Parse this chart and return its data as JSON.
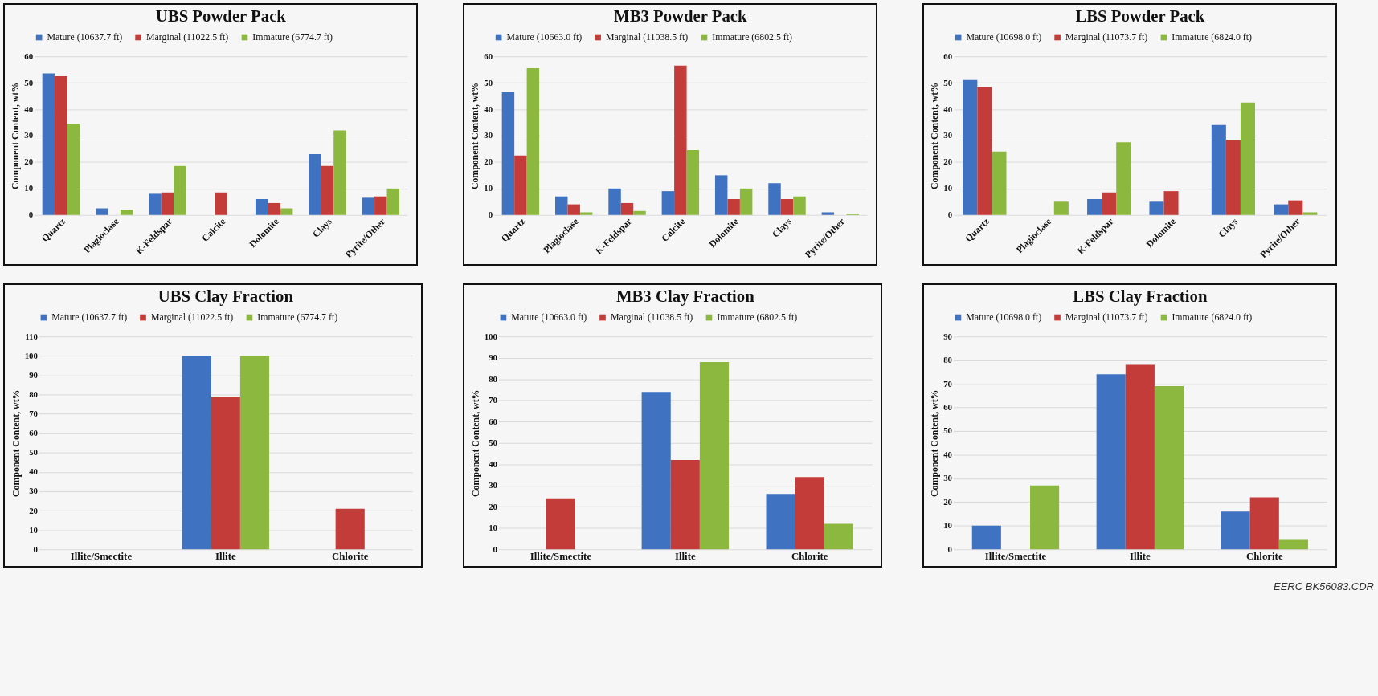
{
  "chart_data": [
    {
      "type": "bar",
      "title": "UBS Powder Pack",
      "ylabel": "Component Content, wt%",
      "categories": [
        "Quartz",
        "Plagioclase",
        "K-Feldspar",
        "Calcite",
        "Dolomite",
        "Clays",
        "Pyrite/Other"
      ],
      "series": [
        {
          "name": "Mature (10637.7 ft)",
          "color": "#3f72c0",
          "values": [
            53.5,
            2.5,
            8,
            null,
            6,
            23,
            6.5
          ]
        },
        {
          "name": "Marginal (11022.5 ft)",
          "color": "#c43c3a",
          "values": [
            52.5,
            null,
            8.5,
            8.5,
            4.5,
            18.5,
            7
          ]
        },
        {
          "name": "Immature (6774.7 ft)",
          "color": "#8cb83f",
          "values": [
            34.5,
            2,
            18.5,
            null,
            2.5,
            32,
            10
          ]
        }
      ],
      "ylim": [
        0,
        60
      ],
      "yticks": [
        0,
        10,
        20,
        30,
        40,
        50,
        60
      ],
      "grid": "y",
      "legend": "top"
    },
    {
      "type": "bar",
      "title": "MB3 Powder Pack",
      "ylabel": "Component Content, wt%",
      "categories": [
        "Quartz",
        "Plagioclase",
        "K-Feldspar",
        "Calcite",
        "Dolomite",
        "Clays",
        "Pyrite/Other"
      ],
      "series": [
        {
          "name": "Mature (10663.0 ft)",
          "color": "#3f72c0",
          "values": [
            46.5,
            7,
            10,
            9,
            15,
            12,
            1
          ]
        },
        {
          "name": "Marginal (11038.5 ft)",
          "color": "#c43c3a",
          "values": [
            22.5,
            4,
            4.5,
            56.5,
            6,
            6,
            null
          ]
        },
        {
          "name": "Immature (6802.5 ft)",
          "color": "#8cb83f",
          "values": [
            55.5,
            1,
            1.5,
            24.5,
            10,
            7,
            0.5
          ]
        }
      ],
      "ylim": [
        0,
        60
      ],
      "yticks": [
        0,
        10,
        20,
        30,
        40,
        50,
        60
      ],
      "grid": "y",
      "legend": "top"
    },
    {
      "type": "bar",
      "title": "LBS Powder Pack",
      "ylabel": "Component Content, wt%",
      "categories": [
        "Quartz",
        "Plagioclase",
        "K-Feldspar",
        "Dolomite",
        "Clays",
        "Pyrite/Other"
      ],
      "series": [
        {
          "name": "Mature (10698.0 ft)",
          "color": "#3f72c0",
          "values": [
            51,
            null,
            6,
            5,
            34,
            4
          ]
        },
        {
          "name": "Marginal (11073.7 ft)",
          "color": "#c43c3a",
          "values": [
            48.5,
            null,
            8.5,
            9,
            28.5,
            5.5
          ]
        },
        {
          "name": "Immature (6824.0 ft)",
          "color": "#8cb83f",
          "values": [
            24,
            5,
            27.5,
            null,
            42.5,
            1
          ]
        }
      ],
      "ylim": [
        0,
        60
      ],
      "yticks": [
        0,
        10,
        20,
        30,
        40,
        50,
        60
      ],
      "grid": "y",
      "legend": "top"
    },
    {
      "type": "bar",
      "title": "UBS Clay Fraction",
      "ylabel": "Component Content, wt%",
      "categories": [
        "Illite/Smectite",
        "Illite",
        "Chlorite"
      ],
      "series": [
        {
          "name": "Mature (10637.7 ft)",
          "color": "#3f72c0",
          "values": [
            null,
            100,
            null
          ]
        },
        {
          "name": "Marginal (11022.5 ft)",
          "color": "#c43c3a",
          "values": [
            null,
            79,
            21
          ]
        },
        {
          "name": "Immature (6774.7 ft)",
          "color": "#8cb83f",
          "values": [
            null,
            100,
            null
          ]
        }
      ],
      "ylim": [
        0,
        110
      ],
      "yticks": [
        0,
        10,
        20,
        30,
        40,
        50,
        60,
        70,
        80,
        90,
        100,
        110
      ],
      "grid": "y",
      "legend": "top"
    },
    {
      "type": "bar",
      "title": "MB3 Clay Fraction",
      "ylabel": "Component Content, wt%",
      "categories": [
        "Illite/Smectite",
        "Illite",
        "Chlorite"
      ],
      "series": [
        {
          "name": "Mature (10663.0 ft)",
          "color": "#3f72c0",
          "values": [
            null,
            74,
            26
          ]
        },
        {
          "name": "Marginal (11038.5 ft)",
          "color": "#c43c3a",
          "values": [
            24,
            42,
            34
          ]
        },
        {
          "name": "Immature (6802.5 ft)",
          "color": "#8cb83f",
          "values": [
            null,
            88,
            12
          ]
        }
      ],
      "ylim": [
        0,
        100
      ],
      "yticks": [
        0,
        10,
        20,
        30,
        40,
        50,
        60,
        70,
        80,
        90,
        100
      ],
      "grid": "y",
      "legend": "top"
    },
    {
      "type": "bar",
      "title": "LBS Clay Fraction",
      "ylabel": "Component Content, wt%",
      "categories": [
        "Illite/Smectite",
        "Illite",
        "Chlorite"
      ],
      "series": [
        {
          "name": "Mature (10698.0 ft)",
          "color": "#3f72c0",
          "values": [
            10,
            74,
            16
          ]
        },
        {
          "name": "Marginal (11073.7 ft)",
          "color": "#c43c3a",
          "values": [
            null,
            78,
            22
          ]
        },
        {
          "name": "Immature (6824.0 ft)",
          "color": "#8cb83f",
          "values": [
            27,
            69,
            4
          ]
        }
      ],
      "ylim": [
        0,
        90
      ],
      "yticks": [
        0,
        10,
        20,
        30,
        40,
        50,
        60,
        70,
        80,
        90
      ],
      "grid": "y",
      "legend": "top",
      "annotations": [
        "EERC BK56083.CDR"
      ]
    }
  ]
}
